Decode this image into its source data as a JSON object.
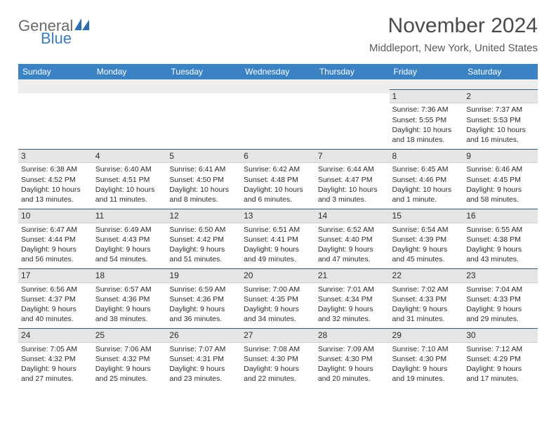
{
  "brand": {
    "part1": "General",
    "part2": "Blue",
    "icon_color": "#2f6fb0"
  },
  "title": "November 2024",
  "location": "Middleport, New York, United States",
  "colors": {
    "header_bg": "#3b82c4",
    "header_text": "#ffffff",
    "daynum_bg": "#e5e5e5",
    "daynum_border_top": "#3f5a78",
    "page_bg": "#ffffff",
    "text": "#2b2b2b"
  },
  "typography": {
    "title_fontsize": 30,
    "location_fontsize": 15,
    "dayhead_fontsize": 12,
    "body_fontsize": 10.5
  },
  "day_names": [
    "Sunday",
    "Monday",
    "Tuesday",
    "Wednesday",
    "Thursday",
    "Friday",
    "Saturday"
  ],
  "weeks": [
    [
      {
        "num": "",
        "sunrise": "",
        "sunset": "",
        "daylight": ""
      },
      {
        "num": "",
        "sunrise": "",
        "sunset": "",
        "daylight": ""
      },
      {
        "num": "",
        "sunrise": "",
        "sunset": "",
        "daylight": ""
      },
      {
        "num": "",
        "sunrise": "",
        "sunset": "",
        "daylight": ""
      },
      {
        "num": "",
        "sunrise": "",
        "sunset": "",
        "daylight": ""
      },
      {
        "num": "1",
        "sunrise": "Sunrise: 7:36 AM",
        "sunset": "Sunset: 5:55 PM",
        "daylight": "Daylight: 10 hours and 18 minutes."
      },
      {
        "num": "2",
        "sunrise": "Sunrise: 7:37 AM",
        "sunset": "Sunset: 5:53 PM",
        "daylight": "Daylight: 10 hours and 16 minutes."
      }
    ],
    [
      {
        "num": "3",
        "sunrise": "Sunrise: 6:38 AM",
        "sunset": "Sunset: 4:52 PM",
        "daylight": "Daylight: 10 hours and 13 minutes."
      },
      {
        "num": "4",
        "sunrise": "Sunrise: 6:40 AM",
        "sunset": "Sunset: 4:51 PM",
        "daylight": "Daylight: 10 hours and 11 minutes."
      },
      {
        "num": "5",
        "sunrise": "Sunrise: 6:41 AM",
        "sunset": "Sunset: 4:50 PM",
        "daylight": "Daylight: 10 hours and 8 minutes."
      },
      {
        "num": "6",
        "sunrise": "Sunrise: 6:42 AM",
        "sunset": "Sunset: 4:48 PM",
        "daylight": "Daylight: 10 hours and 6 minutes."
      },
      {
        "num": "7",
        "sunrise": "Sunrise: 6:44 AM",
        "sunset": "Sunset: 4:47 PM",
        "daylight": "Daylight: 10 hours and 3 minutes."
      },
      {
        "num": "8",
        "sunrise": "Sunrise: 6:45 AM",
        "sunset": "Sunset: 4:46 PM",
        "daylight": "Daylight: 10 hours and 1 minute."
      },
      {
        "num": "9",
        "sunrise": "Sunrise: 6:46 AM",
        "sunset": "Sunset: 4:45 PM",
        "daylight": "Daylight: 9 hours and 58 minutes."
      }
    ],
    [
      {
        "num": "10",
        "sunrise": "Sunrise: 6:47 AM",
        "sunset": "Sunset: 4:44 PM",
        "daylight": "Daylight: 9 hours and 56 minutes."
      },
      {
        "num": "11",
        "sunrise": "Sunrise: 6:49 AM",
        "sunset": "Sunset: 4:43 PM",
        "daylight": "Daylight: 9 hours and 54 minutes."
      },
      {
        "num": "12",
        "sunrise": "Sunrise: 6:50 AM",
        "sunset": "Sunset: 4:42 PM",
        "daylight": "Daylight: 9 hours and 51 minutes."
      },
      {
        "num": "13",
        "sunrise": "Sunrise: 6:51 AM",
        "sunset": "Sunset: 4:41 PM",
        "daylight": "Daylight: 9 hours and 49 minutes."
      },
      {
        "num": "14",
        "sunrise": "Sunrise: 6:52 AM",
        "sunset": "Sunset: 4:40 PM",
        "daylight": "Daylight: 9 hours and 47 minutes."
      },
      {
        "num": "15",
        "sunrise": "Sunrise: 6:54 AM",
        "sunset": "Sunset: 4:39 PM",
        "daylight": "Daylight: 9 hours and 45 minutes."
      },
      {
        "num": "16",
        "sunrise": "Sunrise: 6:55 AM",
        "sunset": "Sunset: 4:38 PM",
        "daylight": "Daylight: 9 hours and 43 minutes."
      }
    ],
    [
      {
        "num": "17",
        "sunrise": "Sunrise: 6:56 AM",
        "sunset": "Sunset: 4:37 PM",
        "daylight": "Daylight: 9 hours and 40 minutes."
      },
      {
        "num": "18",
        "sunrise": "Sunrise: 6:57 AM",
        "sunset": "Sunset: 4:36 PM",
        "daylight": "Daylight: 9 hours and 38 minutes."
      },
      {
        "num": "19",
        "sunrise": "Sunrise: 6:59 AM",
        "sunset": "Sunset: 4:36 PM",
        "daylight": "Daylight: 9 hours and 36 minutes."
      },
      {
        "num": "20",
        "sunrise": "Sunrise: 7:00 AM",
        "sunset": "Sunset: 4:35 PM",
        "daylight": "Daylight: 9 hours and 34 minutes."
      },
      {
        "num": "21",
        "sunrise": "Sunrise: 7:01 AM",
        "sunset": "Sunset: 4:34 PM",
        "daylight": "Daylight: 9 hours and 32 minutes."
      },
      {
        "num": "22",
        "sunrise": "Sunrise: 7:02 AM",
        "sunset": "Sunset: 4:33 PM",
        "daylight": "Daylight: 9 hours and 31 minutes."
      },
      {
        "num": "23",
        "sunrise": "Sunrise: 7:04 AM",
        "sunset": "Sunset: 4:33 PM",
        "daylight": "Daylight: 9 hours and 29 minutes."
      }
    ],
    [
      {
        "num": "24",
        "sunrise": "Sunrise: 7:05 AM",
        "sunset": "Sunset: 4:32 PM",
        "daylight": "Daylight: 9 hours and 27 minutes."
      },
      {
        "num": "25",
        "sunrise": "Sunrise: 7:06 AM",
        "sunset": "Sunset: 4:32 PM",
        "daylight": "Daylight: 9 hours and 25 minutes."
      },
      {
        "num": "26",
        "sunrise": "Sunrise: 7:07 AM",
        "sunset": "Sunset: 4:31 PM",
        "daylight": "Daylight: 9 hours and 23 minutes."
      },
      {
        "num": "27",
        "sunrise": "Sunrise: 7:08 AM",
        "sunset": "Sunset: 4:30 PM",
        "daylight": "Daylight: 9 hours and 22 minutes."
      },
      {
        "num": "28",
        "sunrise": "Sunrise: 7:09 AM",
        "sunset": "Sunset: 4:30 PM",
        "daylight": "Daylight: 9 hours and 20 minutes."
      },
      {
        "num": "29",
        "sunrise": "Sunrise: 7:10 AM",
        "sunset": "Sunset: 4:30 PM",
        "daylight": "Daylight: 9 hours and 19 minutes."
      },
      {
        "num": "30",
        "sunrise": "Sunrise: 7:12 AM",
        "sunset": "Sunset: 4:29 PM",
        "daylight": "Daylight: 9 hours and 17 minutes."
      }
    ]
  ]
}
